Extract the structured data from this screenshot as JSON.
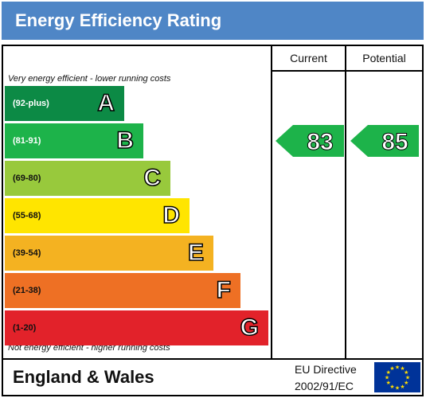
{
  "title": "Energy Efficiency Rating",
  "columns": {
    "current": "Current",
    "potential": "Potential"
  },
  "notes": {
    "top": "Very energy efficient - lower running costs",
    "bottom": "Not energy efficient - higher running costs"
  },
  "chart_data": {
    "type": "bar",
    "categories": [
      "A",
      "B",
      "C",
      "D",
      "E",
      "F",
      "G"
    ],
    "ranges": [
      "(92-plus)",
      "(81-91)",
      "(69-80)",
      "(55-68)",
      "(39-54)",
      "(21-38)",
      "(1-20)"
    ],
    "band_colors": [
      "#0c8a45",
      "#1db34a",
      "#98c93c",
      "#ffe500",
      "#f4b221",
      "#ee7024",
      "#e2222a"
    ],
    "range_text_colors": [
      "#ffffff",
      "#ffffff",
      "#111111",
      "#111111",
      "#111111",
      "#111111",
      "#111111"
    ],
    "current": {
      "value": 83,
      "band": "B",
      "color": "#1db34a"
    },
    "potential": {
      "value": 85,
      "band": "B",
      "color": "#1db34a"
    }
  },
  "footer": {
    "region": "England & Wales",
    "directive_line1": "EU Directive",
    "directive_line2": "2002/91/EC",
    "flag_icon": "eu-flag-icon"
  }
}
